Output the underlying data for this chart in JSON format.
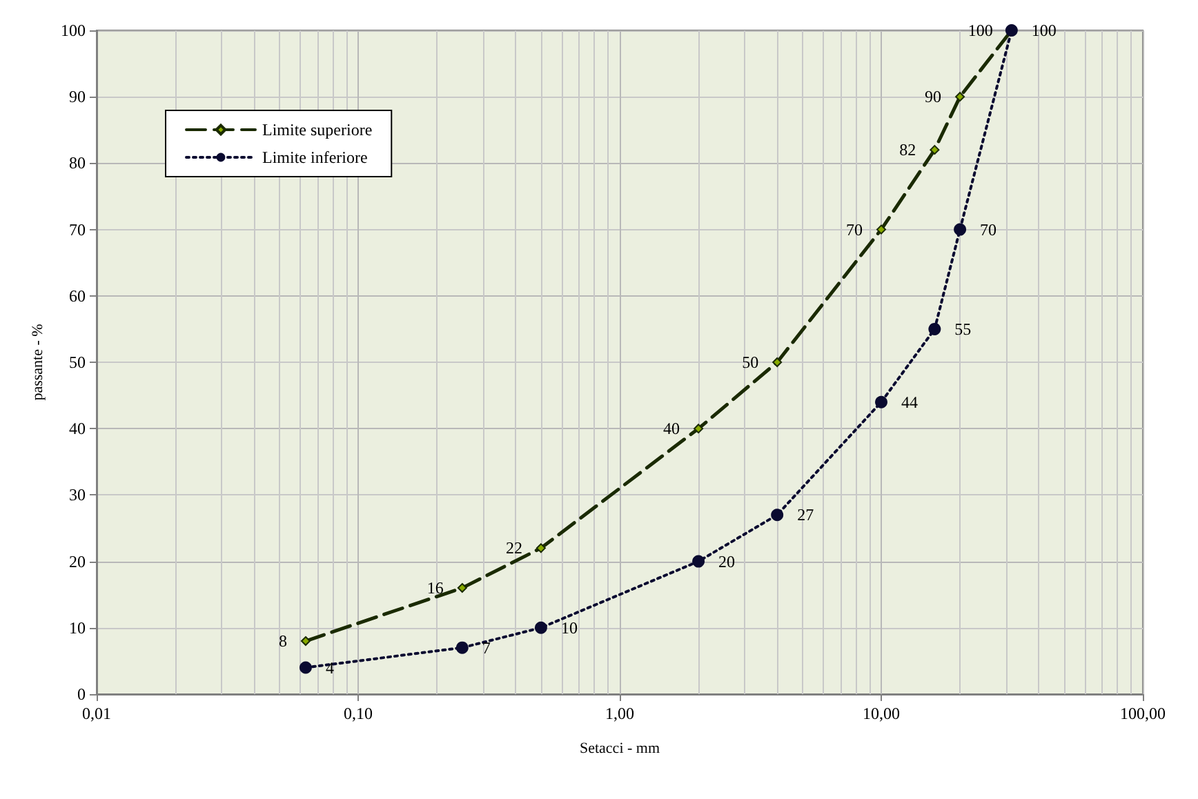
{
  "chart_data": {
    "type": "line",
    "xlabel": "Setacci - mm",
    "ylabel": "passante - %",
    "log": "x",
    "grid": true,
    "legend": "top left",
    "data_labels": true,
    "xlim": [
      0.01,
      100
    ],
    "xticks": [
      {
        "value": 0.01,
        "label": "0,01"
      },
      {
        "value": 0.1,
        "label": "0,10"
      },
      {
        "value": 1,
        "label": "1,00"
      },
      {
        "value": 10,
        "label": "10,00"
      },
      {
        "value": 100,
        "label": "100,00"
      }
    ],
    "ylim": [
      0,
      100
    ],
    "yticks": [
      0,
      10,
      20,
      30,
      40,
      50,
      60,
      70,
      80,
      90,
      100
    ],
    "series": [
      {
        "name": "Limite superiore",
        "color": "#1a2a00",
        "marker": "diamond",
        "line_style": "dashed",
        "x": [
          0.063,
          0.25,
          0.5,
          2,
          4,
          10,
          16,
          20,
          31.5
        ],
        "values": [
          8,
          16,
          22,
          40,
          50,
          70,
          82,
          90,
          100
        ]
      },
      {
        "name": "Limite inferiore",
        "color": "#0a0a30",
        "marker": "circle",
        "line_style": "dotted",
        "x": [
          0.063,
          0.25,
          0.5,
          2,
          4,
          10,
          16,
          20,
          31.5
        ],
        "values": [
          4,
          7,
          10,
          20,
          27,
          44,
          55,
          70,
          100
        ]
      }
    ]
  }
}
